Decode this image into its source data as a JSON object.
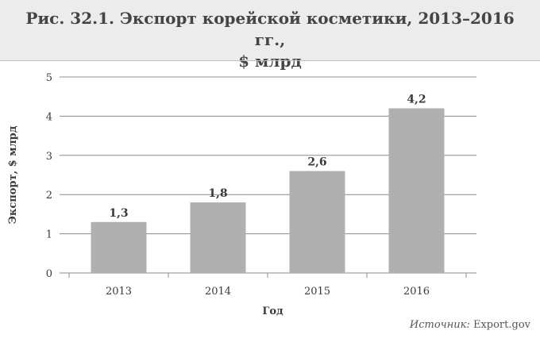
{
  "title": "Рис. 32.1. Экспорт корейской косметики, 2013–2016 гг., $ млрд",
  "title_lines": [
    "Рис. 32.1. Экспорт корейской косметики, 2013–2016 гг.,",
    "$ млрд"
  ],
  "source": {
    "label": "Источник:",
    "value": "Export.gov"
  },
  "colors": {
    "bar": "#b0b0b0",
    "header_bg": "#ececec",
    "grid": "#8c8c8c",
    "text": "#3a3a3a"
  },
  "chart_data": {
    "type": "bar",
    "categories": [
      "2013",
      "2014",
      "2015",
      "2016"
    ],
    "values": [
      1.3,
      1.8,
      2.6,
      4.2
    ],
    "value_labels": [
      "1,3",
      "1,8",
      "2,6",
      "4,2"
    ],
    "title": "Рис. 32.1. Экспорт корейской косметики, 2013–2016 гг., $ млрд",
    "xlabel": "Год",
    "ylabel": "Экспорт, $ млрд",
    "ylim": [
      0,
      5
    ],
    "yticks": [
      0,
      1,
      2,
      3,
      4,
      5
    ],
    "grid": true,
    "legend": "none"
  }
}
